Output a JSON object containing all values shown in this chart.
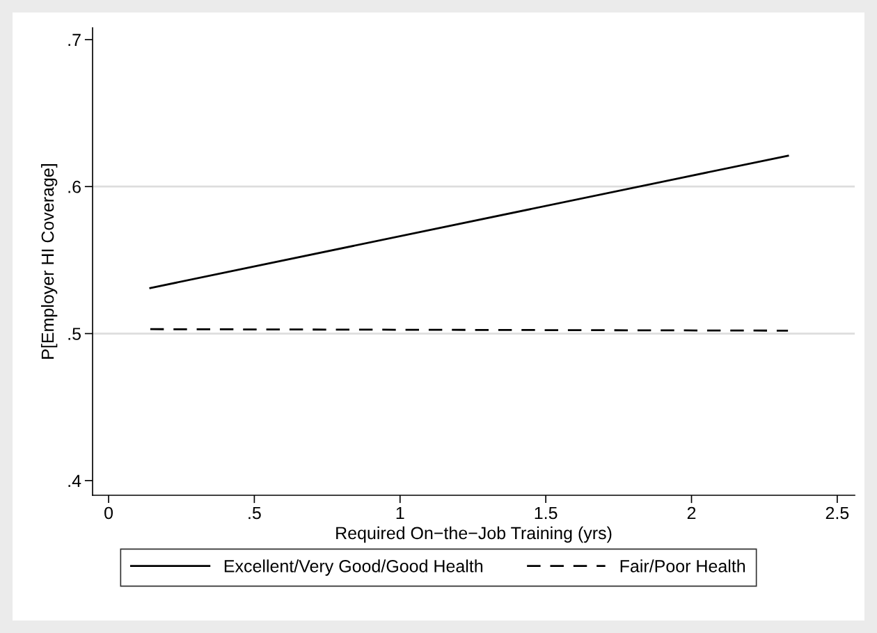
{
  "chart_data": {
    "type": "line",
    "xlabel": "Required On−the−Job Training (yrs)",
    "ylabel": "P[Employer HI Coverage]",
    "x": [
      0.143,
      2.331
    ],
    "series": [
      {
        "name": "Excellent/Very Good/Good Health",
        "color": "#000000",
        "line_style": "solid",
        "values": [
          0.531,
          0.621
        ]
      },
      {
        "name": "Fair/Poor Health",
        "color": "#000000",
        "line_style": "dashed",
        "values": [
          0.503,
          0.502
        ]
      }
    ],
    "xlim": [
      -0.055,
      2.56
    ],
    "ylim": [
      0.39,
      0.708
    ],
    "xticks": [
      0,
      {
        "value": 0.5,
        "label": ".5"
      },
      1,
      1.5,
      2,
      2.5
    ],
    "yticks": [
      {
        "value": 0.4,
        "label": ".4"
      },
      {
        "value": 0.5,
        "label": ".5"
      },
      {
        "value": 0.6,
        "label": ".6"
      },
      {
        "value": 0.7,
        "label": ".7"
      }
    ],
    "grid": "y",
    "legend": "bottom",
    "marker": "none"
  }
}
